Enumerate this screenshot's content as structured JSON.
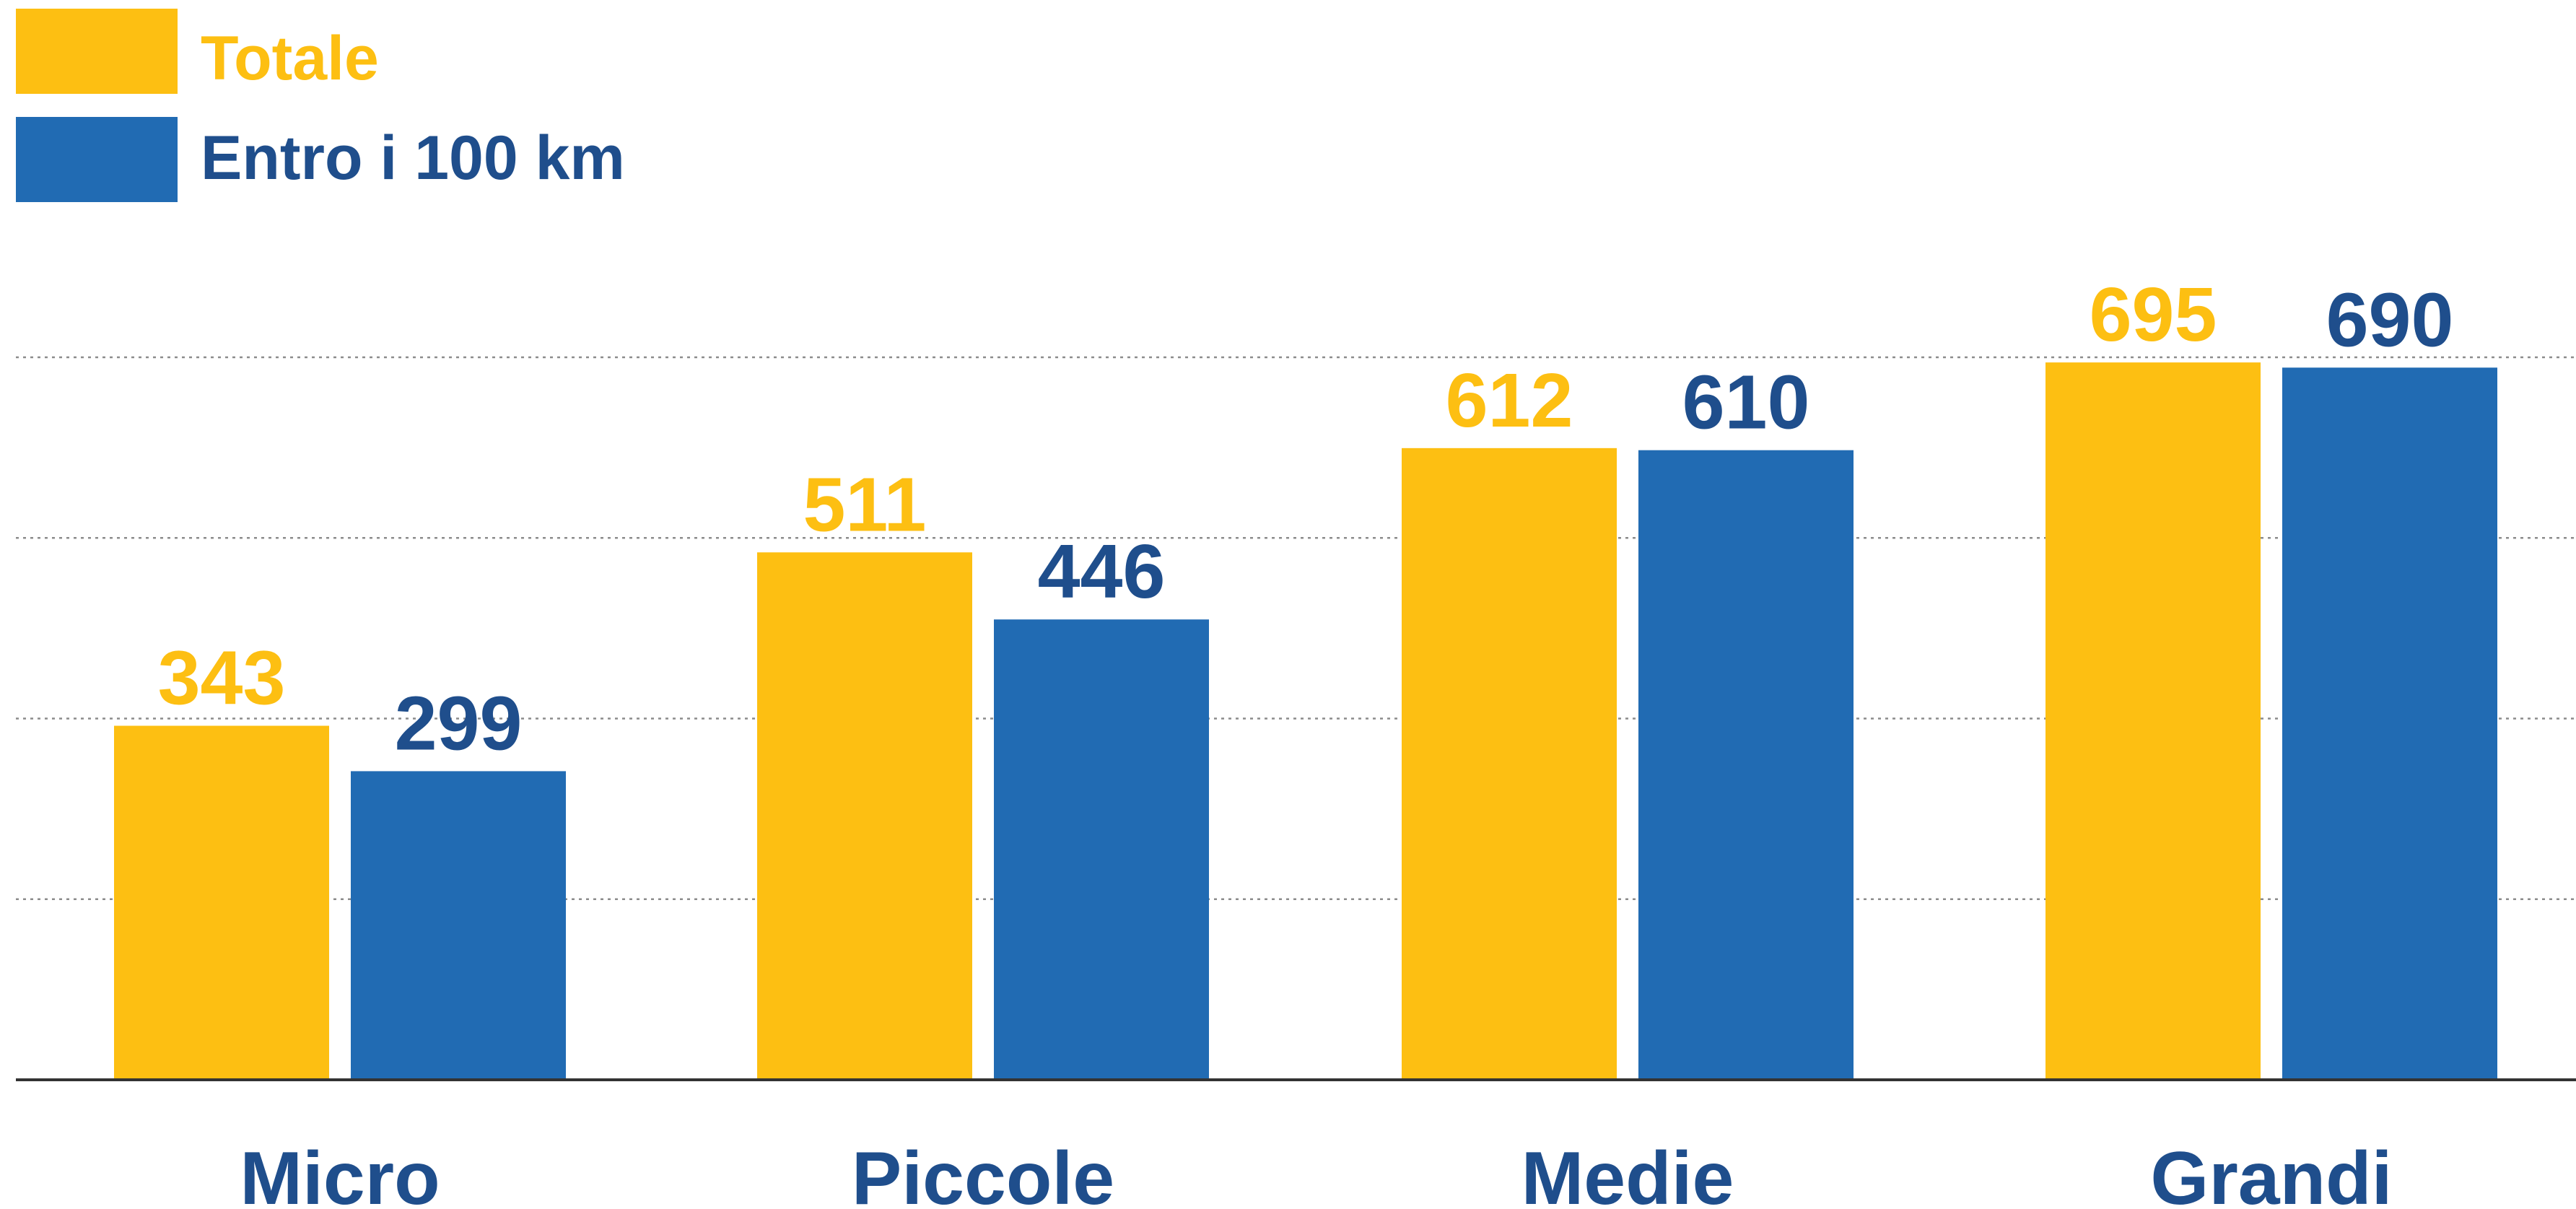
{
  "colors": {
    "totale": "#FDBF12",
    "entro": "#216BB3",
    "entro_label": "#1F4E8C",
    "category_label": "#1F4E8C",
    "gridline": "#8C8C8C",
    "axis": "#333333"
  },
  "legend": {
    "position": "top-left",
    "items": [
      {
        "label": "Totale",
        "color_key": "totale",
        "text_color_key": "totale"
      },
      {
        "label": "Entro i 100 km",
        "color_key": "entro",
        "text_color_key": "entro_label"
      }
    ]
  },
  "chart_data": {
    "type": "bar",
    "title": "",
    "xlabel": "",
    "ylabel": "",
    "categories": [
      "Micro",
      "Piccole",
      "Medie",
      "Grandi"
    ],
    "series": [
      {
        "name": "Totale",
        "values": [
          343,
          511,
          612,
          695
        ]
      },
      {
        "name": "Entro i 100 km",
        "values": [
          299,
          446,
          610,
          690
        ]
      }
    ],
    "ylim": [
      0,
      700
    ],
    "y_gridlines": [
      175,
      350,
      525,
      700
    ],
    "grid": "horizontal dotted",
    "data_labels": true,
    "y_axis_visible": false
  }
}
